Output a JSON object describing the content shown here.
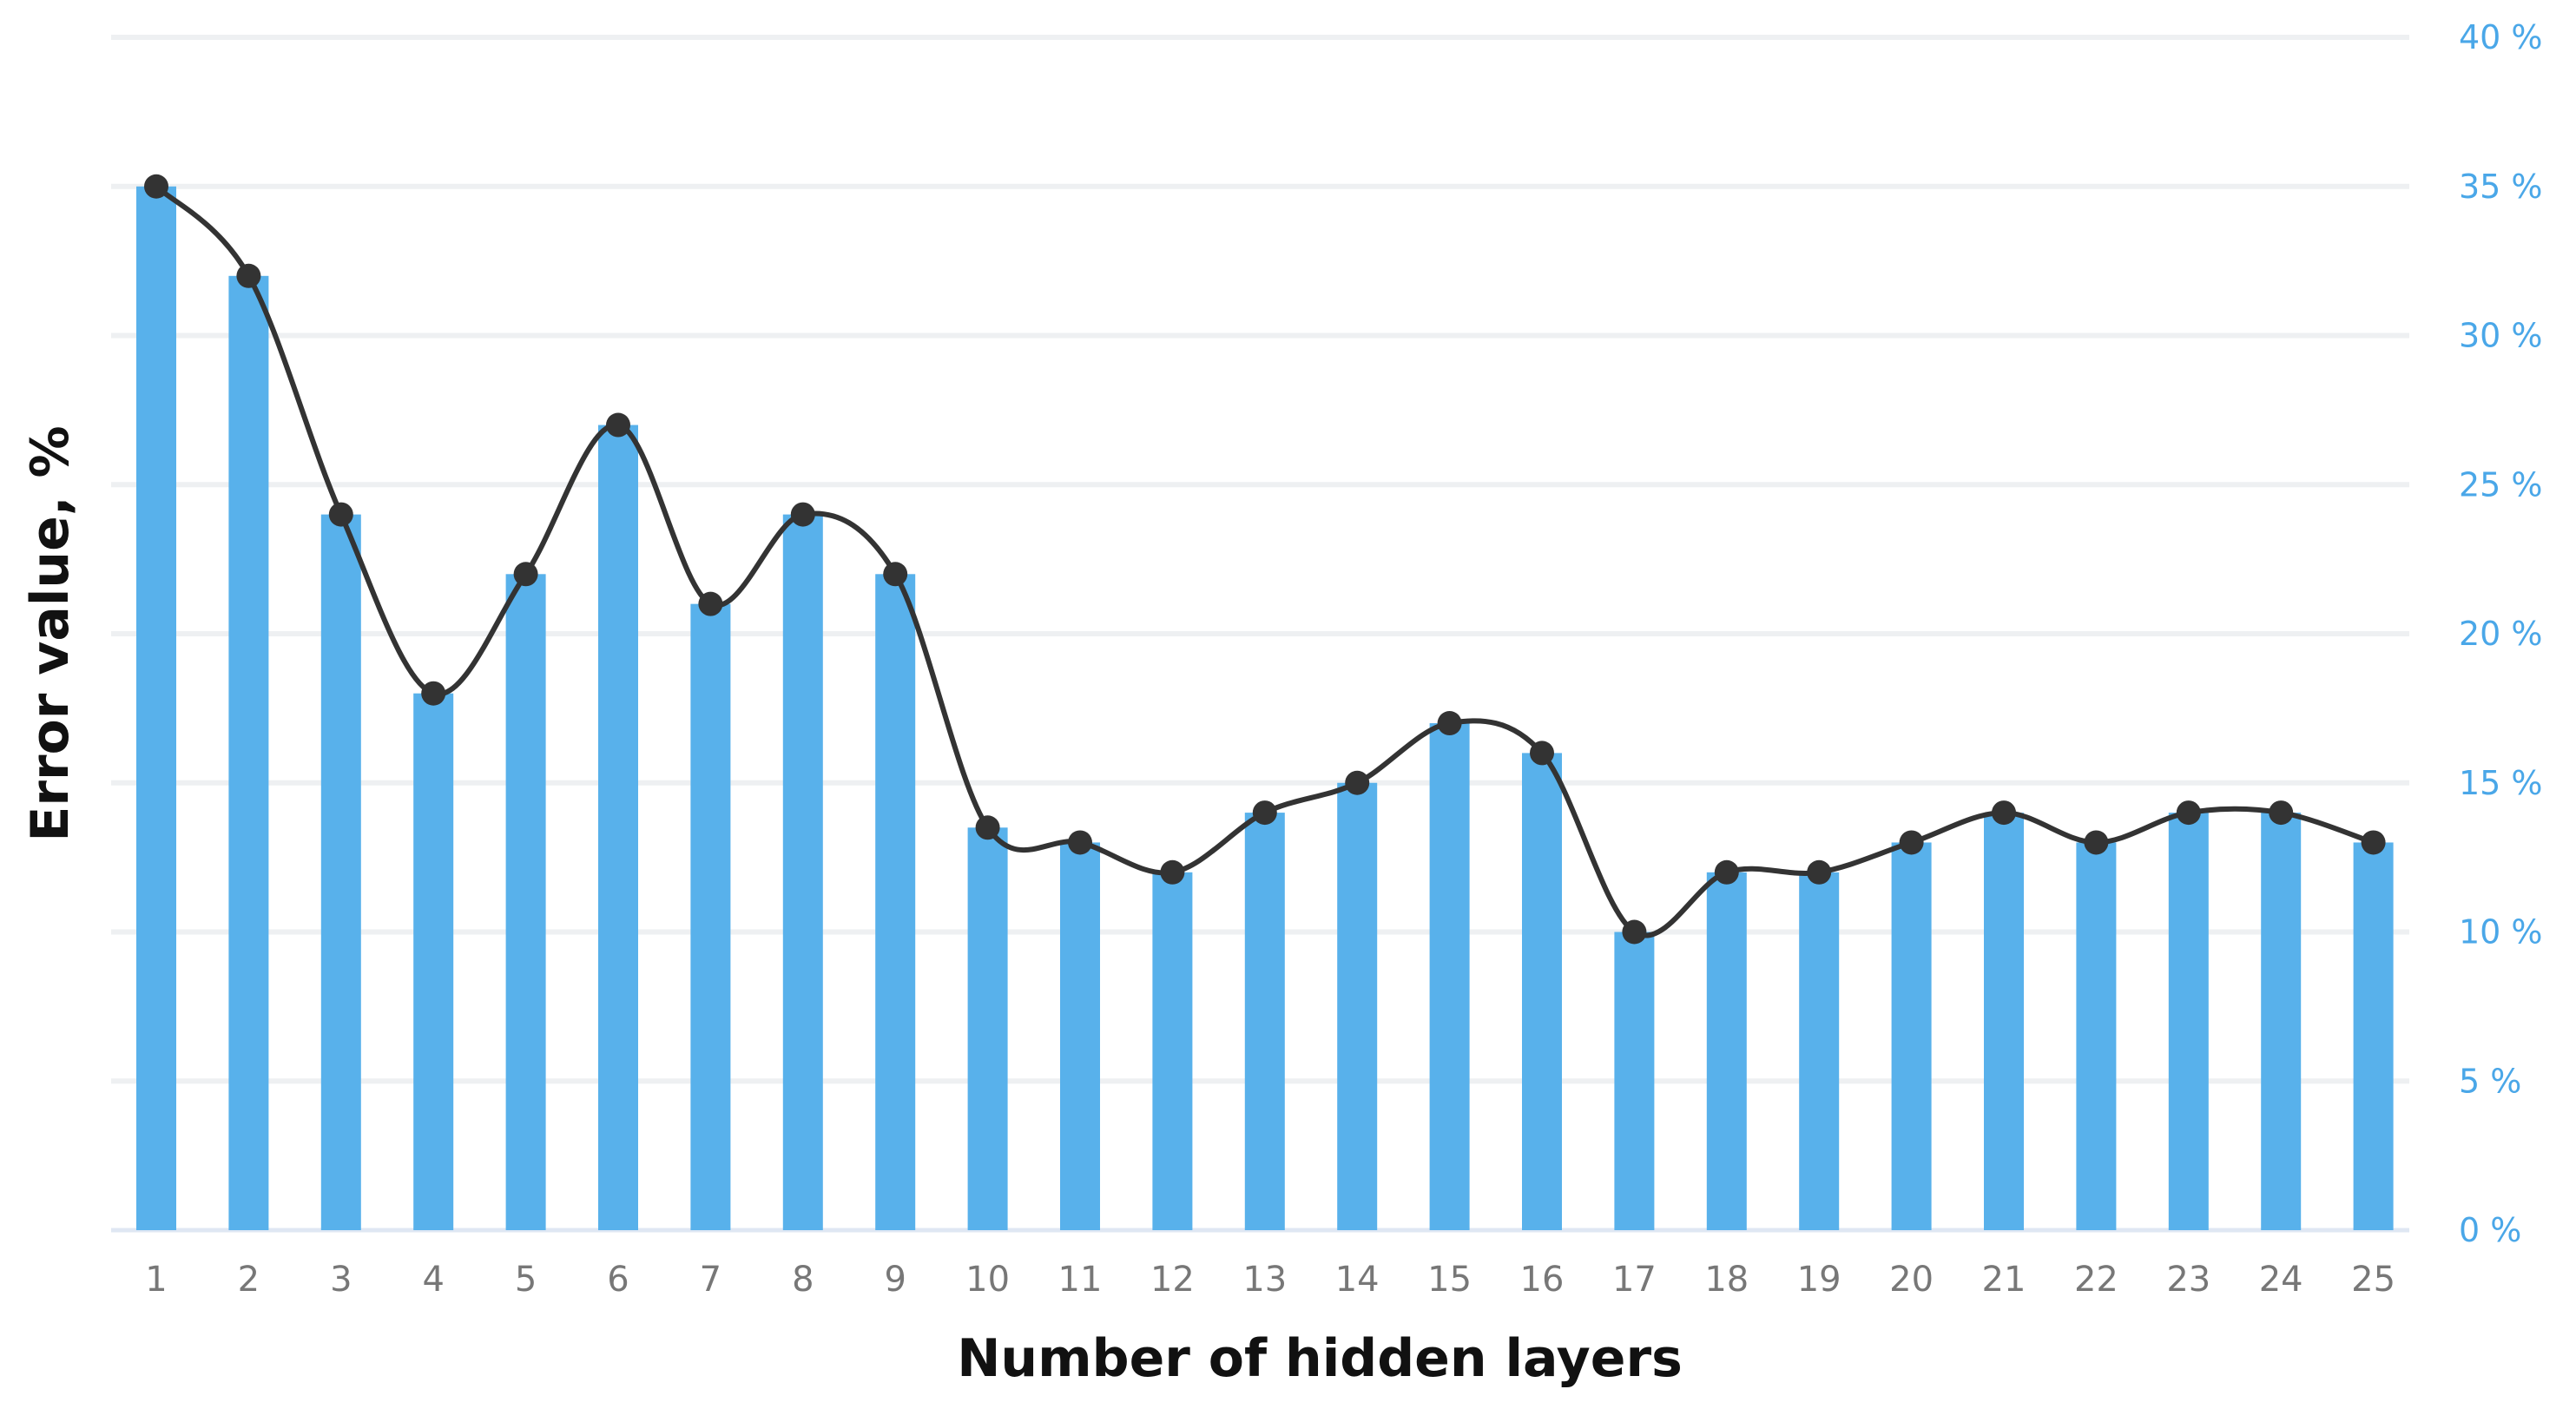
{
  "chart_data": {
    "type": "bar",
    "title": "",
    "xlabel": "Number of hidden layers",
    "ylabel": "Error value, %",
    "categories": [
      "1",
      "2",
      "3",
      "4",
      "5",
      "6",
      "7",
      "8",
      "9",
      "10",
      "11",
      "12",
      "13",
      "14",
      "15",
      "16",
      "17",
      "18",
      "19",
      "20",
      "21",
      "22",
      "23",
      "24",
      "25"
    ],
    "series": [
      {
        "values": [
          35,
          32,
          24,
          18,
          22,
          27,
          21,
          24,
          22,
          13.5,
          13,
          12,
          14,
          15,
          17,
          16,
          10,
          12,
          12,
          13,
          14,
          13,
          14,
          14,
          13
        ]
      }
    ],
    "overlay": {
      "type": "line",
      "smooth": true,
      "markers": true,
      "values": [
        35,
        32,
        24,
        18,
        22,
        27,
        21,
        24,
        22,
        13.5,
        13,
        12,
        14,
        15,
        17,
        16,
        10,
        12,
        12,
        13,
        14,
        13,
        14,
        14,
        13
      ]
    },
    "ylim": [
      0,
      40
    ],
    "yticks": [
      0,
      5,
      10,
      15,
      20,
      25,
      30,
      35,
      40
    ],
    "ytick_labels": [
      "0 %",
      "5 %",
      "10 %",
      "15 %",
      "20 %",
      "25 %",
      "30 %",
      "35 %",
      "40 %"
    ],
    "y_axis_side": "right",
    "grid": true,
    "legend": "none",
    "colors": {
      "bar": "#58b1eb",
      "line": "#333333",
      "grid": "#eef0f2",
      "ytick_text": "#4aa7e8",
      "xtick_text": "#777777"
    }
  }
}
